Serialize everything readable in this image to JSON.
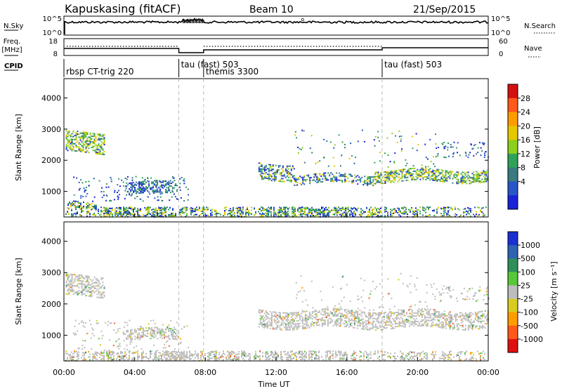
{
  "header": {
    "station": "Kapuskasing (fitACF)",
    "beam": "Beam 10",
    "date": "21/Sep/2015"
  },
  "noise_panel": {
    "left_label": "N.Sky",
    "left_ticks": [
      "10^5",
      "10^0"
    ],
    "right_ticks": [
      "10^5",
      "10^0"
    ],
    "right_label": "N.Search"
  },
  "freq_panel": {
    "left_label_1": "Freq.",
    "left_label_2": "[MHz]",
    "left_ticks": [
      "18",
      "8"
    ],
    "right_ticks": [
      "60",
      "0"
    ],
    "right_label": "Nave"
  },
  "cpid": {
    "label": "CPID",
    "modes": [
      {
        "name": "rbsp CT-trig 220",
        "start_h": 0
      },
      {
        "name": "tau (fast) 503",
        "start_h": 6.5
      },
      {
        "name": "themis 3300",
        "start_h": 7.9
      },
      {
        "name": "tau (fast) 503",
        "start_h": 18
      }
    ]
  },
  "x_axis": {
    "label": "Time UT",
    "ticks": [
      "00:00",
      "04:00",
      "08:00",
      "12:00",
      "16:00",
      "20:00",
      "00:00"
    ],
    "range_h": [
      0,
      24
    ],
    "mode_change_h": [
      6.5,
      7.9,
      18
    ]
  },
  "y_axis": {
    "label": "Slant Range [km]",
    "ticks": [
      "1000",
      "2000",
      "3000",
      "4000"
    ],
    "range_km": [
      180,
      4620
    ]
  },
  "power_scale": {
    "label": "Power [dB]",
    "ticks": [
      "28",
      "24",
      "20",
      "16",
      "12",
      "8",
      "4"
    ],
    "colors": [
      "#d41010",
      "#ff5a1a",
      "#ff9c00",
      "#e6c800",
      "#8ccf1e",
      "#2fa25a",
      "#3a7a80",
      "#2855c8",
      "#1a22d8"
    ]
  },
  "velocity_scale": {
    "label": "Velocity [m s⁻¹]",
    "ticks": [
      "1000",
      "500",
      "100",
      "25",
      "-25",
      "-100",
      "-500",
      "-1000"
    ],
    "colors": [
      "#1a30d0",
      "#2f63b4",
      "#2f8f5a",
      "#57c83a",
      "#bdbdbd",
      "#d8cc20",
      "#ff9c00",
      "#ff5a1a",
      "#e01010"
    ]
  },
  "chart_data": [
    {
      "type": "heatmap",
      "title": "Power [dB]",
      "xlabel": "Time UT",
      "ylabel": "Slant Range [km]",
      "xlim_h": [
        0,
        24
      ],
      "ylim_km": [
        180,
        4620
      ],
      "echo_regions": [
        {
          "t_h": [
            0.1,
            2.3
          ],
          "range_km": [
            2250,
            2900
          ],
          "level": "high"
        },
        {
          "t_h": [
            0.2,
            1.8
          ],
          "range_km": [
            450,
            650
          ],
          "level": "mid"
        },
        {
          "t_h": [
            3.5,
            6.4
          ],
          "range_km": [
            900,
            1300
          ],
          "level": "low"
        },
        {
          "t_h": [
            11.0,
            13.0
          ],
          "range_km": [
            1400,
            1900
          ],
          "level": "mid"
        },
        {
          "t_h": [
            13.0,
            17.5
          ],
          "range_km": [
            1250,
            1550
          ],
          "level": "mid"
        },
        {
          "t_h": [
            17.5,
            24.0
          ],
          "range_km": [
            1300,
            1700
          ],
          "level": "high"
        }
      ]
    },
    {
      "type": "heatmap",
      "title": "Velocity [m s⁻¹]",
      "xlabel": "Time UT",
      "ylabel": "Slant Range [km]",
      "xlim_h": [
        0,
        24
      ],
      "ylim_km": [
        180,
        4620
      ],
      "echo_regions": [
        {
          "t_h": [
            0.1,
            2.3
          ],
          "range_km": [
            2250,
            2900
          ],
          "velocity": "-25..25"
        },
        {
          "t_h": [
            3.5,
            6.4
          ],
          "range_km": [
            850,
            1200
          ],
          "velocity": "-25..25"
        },
        {
          "t_h": [
            11.0,
            24.0
          ],
          "range_km": [
            1250,
            1800
          ],
          "velocity": "-25..25"
        }
      ]
    }
  ]
}
